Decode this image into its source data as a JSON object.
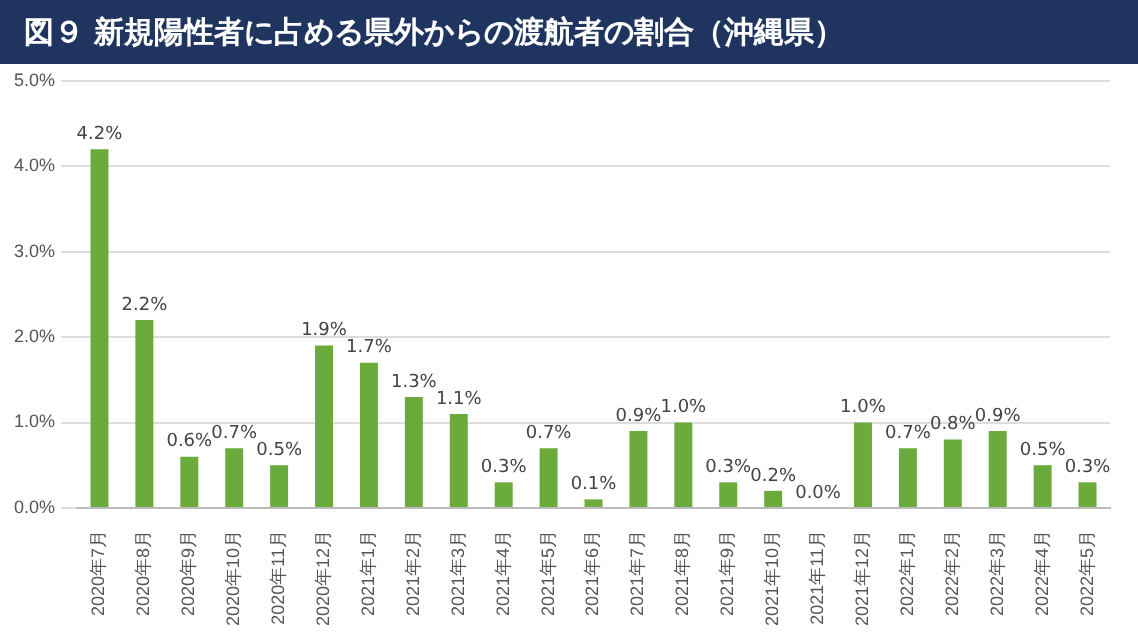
{
  "chart_data": {
    "type": "bar",
    "title": "図９ 新規陽性者に占める県外からの渡航者の割合（沖縄県）",
    "categories": [
      "2020年7月",
      "2020年8月",
      "2020年9月",
      "2020年10月",
      "2020年11月",
      "2020年12月",
      "2021年1月",
      "2021年2月",
      "2021年3月",
      "2021年4月",
      "2021年5月",
      "2021年6月",
      "2021年7月",
      "2021年8月",
      "2021年9月",
      "2021年10月",
      "2021年11月",
      "2021年12月",
      "2022年1月",
      "2022年2月",
      "2022年3月",
      "2022年4月",
      "2022年5月"
    ],
    "values": [
      4.2,
      2.2,
      0.6,
      0.7,
      0.5,
      1.9,
      1.7,
      1.3,
      1.1,
      0.3,
      0.7,
      0.1,
      0.9,
      1.0,
      0.3,
      0.2,
      0.0,
      1.0,
      0.7,
      0.8,
      0.9,
      0.5,
      0.3
    ],
    "value_labels": [
      "4.2%",
      "2.2%",
      "0.6%",
      "0.7%",
      "0.5%",
      "1.9%",
      "1.7%",
      "1.3%",
      "1.1%",
      "0.3%",
      "0.7%",
      "0.1%",
      "0.9%",
      "1.0%",
      "0.3%",
      "0.2%",
      "0.0%",
      "1.0%",
      "0.7%",
      "0.8%",
      "0.9%",
      "0.5%",
      "0.3%"
    ],
    "color": "#6aab3c",
    "ylim": [
      0,
      5
    ],
    "yticks": [
      {
        "value": 0,
        "label": "0.0%"
      },
      {
        "value": 1,
        "label": "1.0%"
      },
      {
        "value": 2,
        "label": "2.0%"
      },
      {
        "value": 3,
        "label": "3.0%"
      },
      {
        "value": 4,
        "label": "4.0%"
      },
      {
        "value": 5,
        "label": "5.0%"
      }
    ],
    "grid": "y"
  }
}
